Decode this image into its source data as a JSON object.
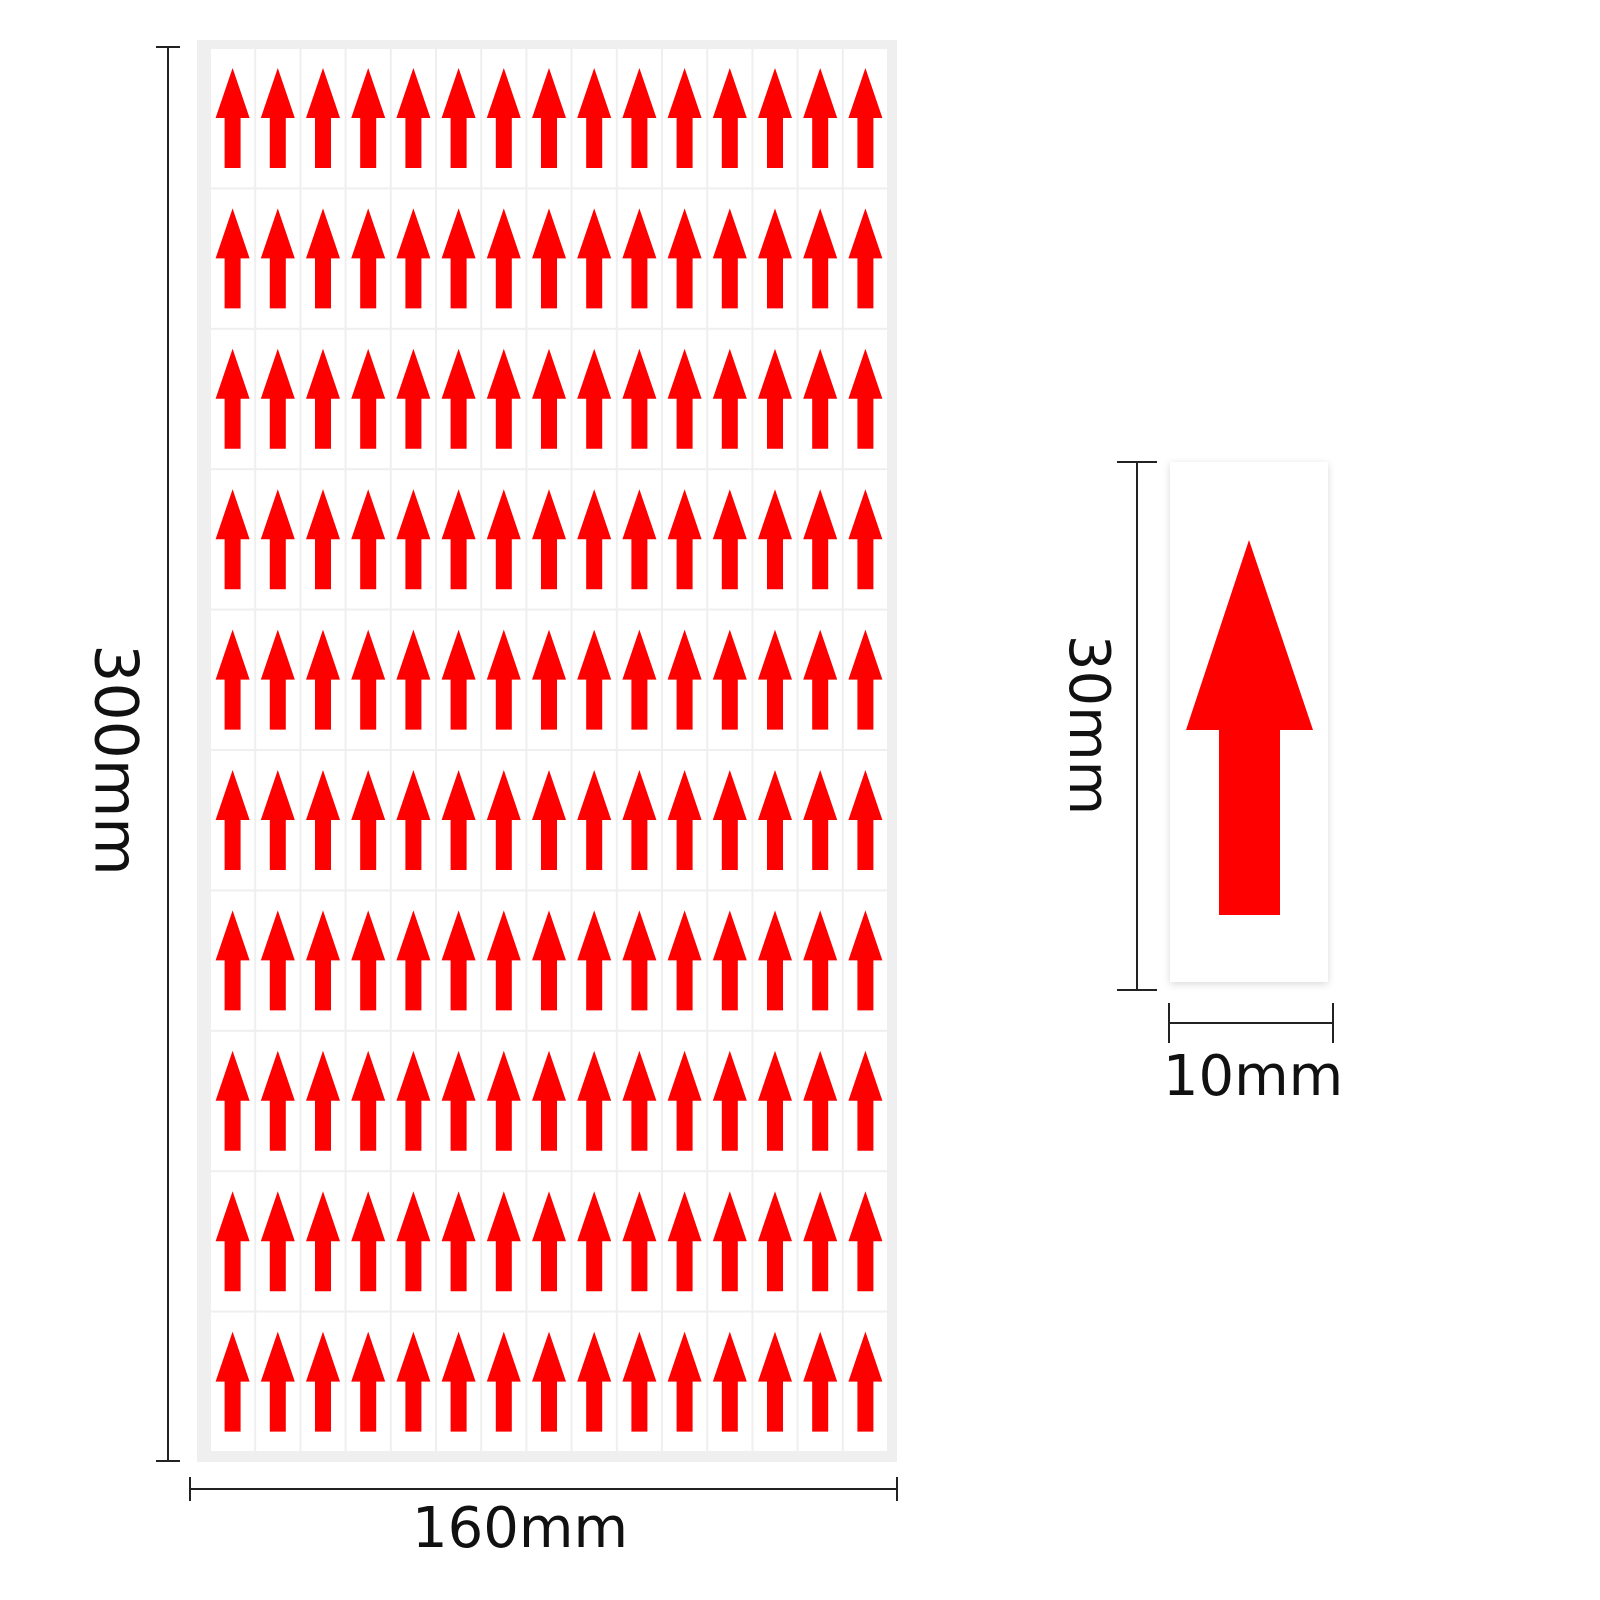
{
  "sheet": {
    "height_label": "300mm",
    "width_label": "160mm"
  },
  "sticker": {
    "height_label": "30mm",
    "width_label": "10mm"
  }
}
